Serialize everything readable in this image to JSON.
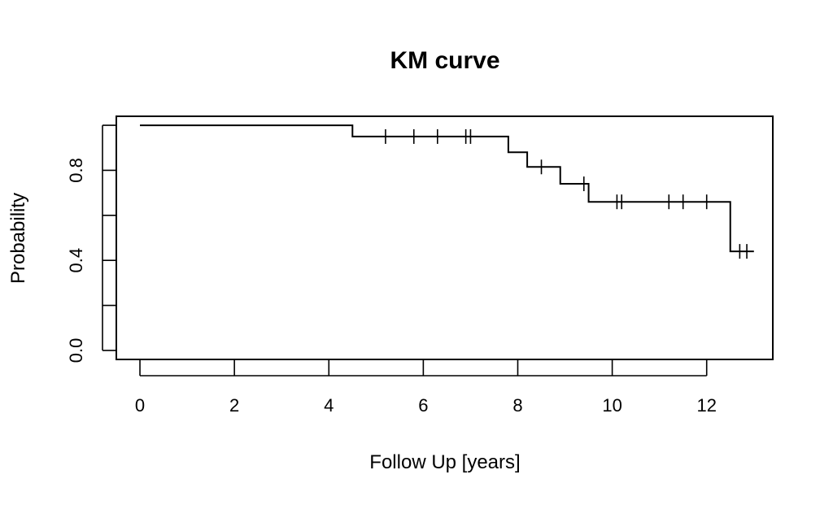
{
  "chart_data": {
    "type": "line",
    "title": "KM curve",
    "xlabel": "Follow Up [years]",
    "ylabel": "Probability",
    "xlim": [
      -0.5,
      13.4
    ],
    "ylim": [
      -0.04,
      1.04
    ],
    "x_ticks": [
      {
        "value": 0,
        "label": "0"
      },
      {
        "value": 2,
        "label": "2"
      },
      {
        "value": 4,
        "label": "4"
      },
      {
        "value": 6,
        "label": "6"
      },
      {
        "value": 8,
        "label": "8"
      },
      {
        "value": 10,
        "label": "10"
      },
      {
        "value": 12,
        "label": "12"
      }
    ],
    "y_ticks": [
      {
        "value": 0.0,
        "label": "0.0"
      },
      {
        "value": 0.2,
        "label": ""
      },
      {
        "value": 0.4,
        "label": "0.4"
      },
      {
        "value": 0.6,
        "label": ""
      },
      {
        "value": 0.8,
        "label": "0.8"
      },
      {
        "value": 1.0,
        "label": ""
      }
    ],
    "grid": false,
    "step_curve": [
      {
        "x": 0,
        "y": 1.0
      },
      {
        "x": 4.5,
        "y": 0.95
      },
      {
        "x": 7.8,
        "y": 0.88
      },
      {
        "x": 8.2,
        "y": 0.815
      },
      {
        "x": 8.9,
        "y": 0.74
      },
      {
        "x": 9.5,
        "y": 0.66
      },
      {
        "x": 12.5,
        "y": 0.44
      },
      {
        "x": 13.0,
        "y": 0.44
      }
    ],
    "censored": [
      {
        "x": 5.2,
        "y": 0.95
      },
      {
        "x": 5.8,
        "y": 0.95
      },
      {
        "x": 6.3,
        "y": 0.95
      },
      {
        "x": 6.9,
        "y": 0.95
      },
      {
        "x": 7.0,
        "y": 0.95
      },
      {
        "x": 8.5,
        "y": 0.815
      },
      {
        "x": 9.4,
        "y": 0.74
      },
      {
        "x": 10.1,
        "y": 0.66
      },
      {
        "x": 10.2,
        "y": 0.66
      },
      {
        "x": 11.2,
        "y": 0.66
      },
      {
        "x": 11.5,
        "y": 0.66
      },
      {
        "x": 12.0,
        "y": 0.66
      },
      {
        "x": 12.7,
        "y": 0.44
      },
      {
        "x": 12.85,
        "y": 0.44
      }
    ]
  }
}
